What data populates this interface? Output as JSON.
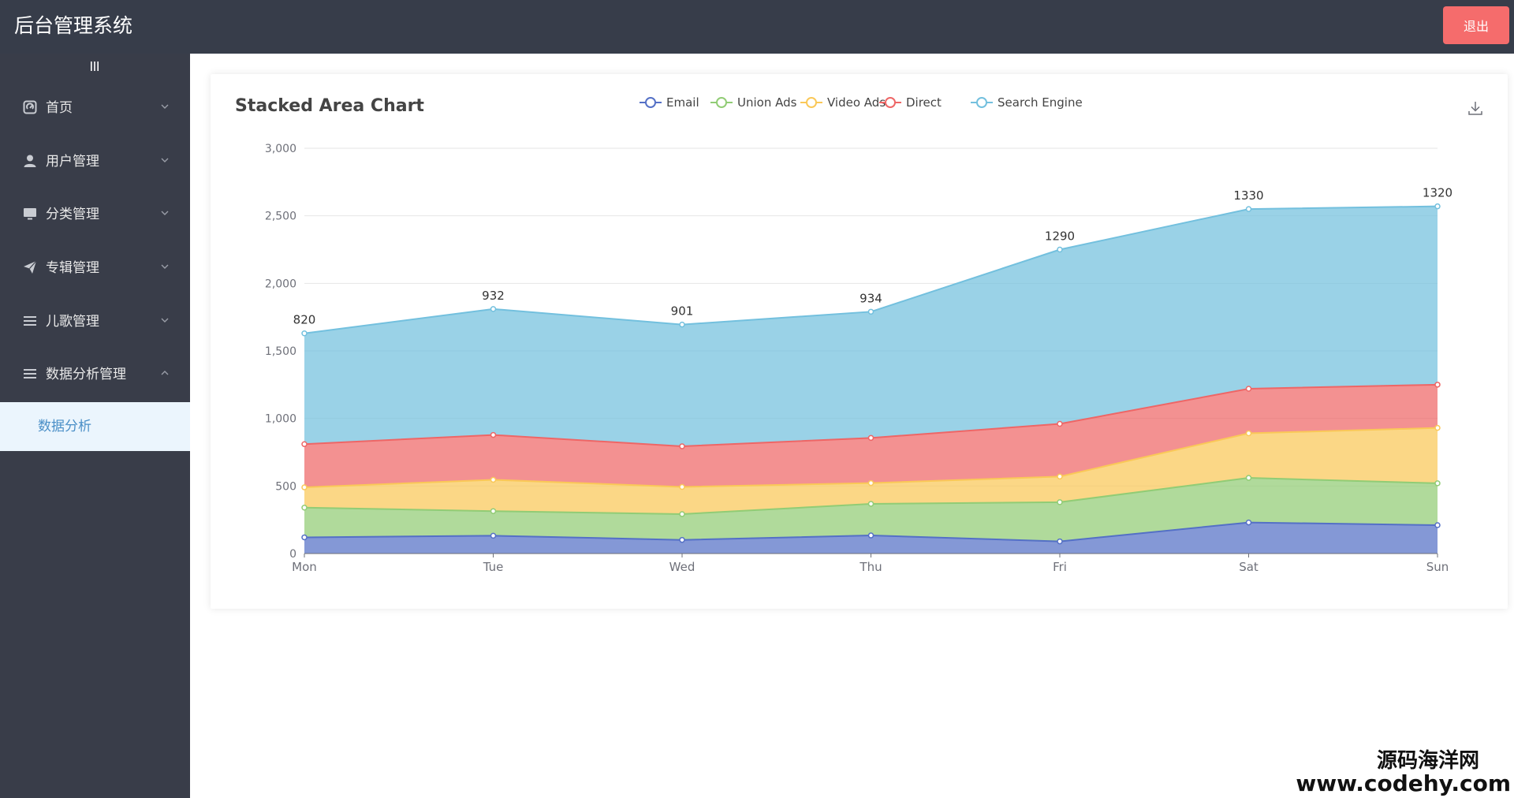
{
  "app": {
    "title": "后台管理系统",
    "logout_label": "退出"
  },
  "sidebar": {
    "toggle_icon": "menu-toggle-icon",
    "items": [
      {
        "label": "首页",
        "icon": "dashboard-icon",
        "expanded": false
      },
      {
        "label": "用户管理",
        "icon": "user-icon",
        "expanded": false
      },
      {
        "label": "分类管理",
        "icon": "monitor-icon",
        "expanded": false
      },
      {
        "label": "专辑管理",
        "icon": "send-icon",
        "expanded": false
      },
      {
        "label": "儿歌管理",
        "icon": "list-icon",
        "expanded": false
      },
      {
        "label": "数据分析管理",
        "icon": "list-icon",
        "expanded": true
      }
    ],
    "subitems": [
      {
        "label": "数据分析",
        "active": true
      }
    ],
    "colors": {
      "background": "#393d49",
      "text": "#e9e9e9",
      "active_bg": "#ebf5fd",
      "active_text": "#4a8fc7"
    }
  },
  "header": {
    "background": "#373d4a",
    "logout_color": "#f56c6c"
  },
  "watermark": {
    "cn": "源码海洋网",
    "url": "www.codehy.com"
  },
  "chart_data": {
    "type": "area",
    "stacked": true,
    "title": "Stacked Area Chart",
    "categories": [
      "Mon",
      "Tue",
      "Wed",
      "Thu",
      "Fri",
      "Sat",
      "Sun"
    ],
    "ylim": [
      0,
      3000
    ],
    "yticks": [
      0,
      500,
      1000,
      1500,
      2000,
      2500,
      3000
    ],
    "ytick_labels": [
      "0",
      "500",
      "1,000",
      "1,500",
      "2,000",
      "2,500",
      "3,000"
    ],
    "grid": true,
    "legend_position": "top-center",
    "series": [
      {
        "name": "Email",
        "values": [
          120,
          132,
          101,
          134,
          90,
          230,
          210
        ],
        "color": "#5470c6"
      },
      {
        "name": "Union Ads",
        "values": [
          220,
          182,
          191,
          234,
          290,
          330,
          310
        ],
        "color": "#91cc75"
      },
      {
        "name": "Video Ads",
        "values": [
          150,
          232,
          201,
          154,
          190,
          330,
          410
        ],
        "color": "#fac858"
      },
      {
        "name": "Direct",
        "values": [
          320,
          332,
          301,
          334,
          390,
          330,
          320
        ],
        "color": "#ee6666"
      },
      {
        "name": "Search Engine",
        "values": [
          820,
          932,
          901,
          934,
          1290,
          1330,
          1320
        ],
        "color": "#73c0de",
        "show_labels": true
      }
    ],
    "download_icon": "download-icon"
  }
}
